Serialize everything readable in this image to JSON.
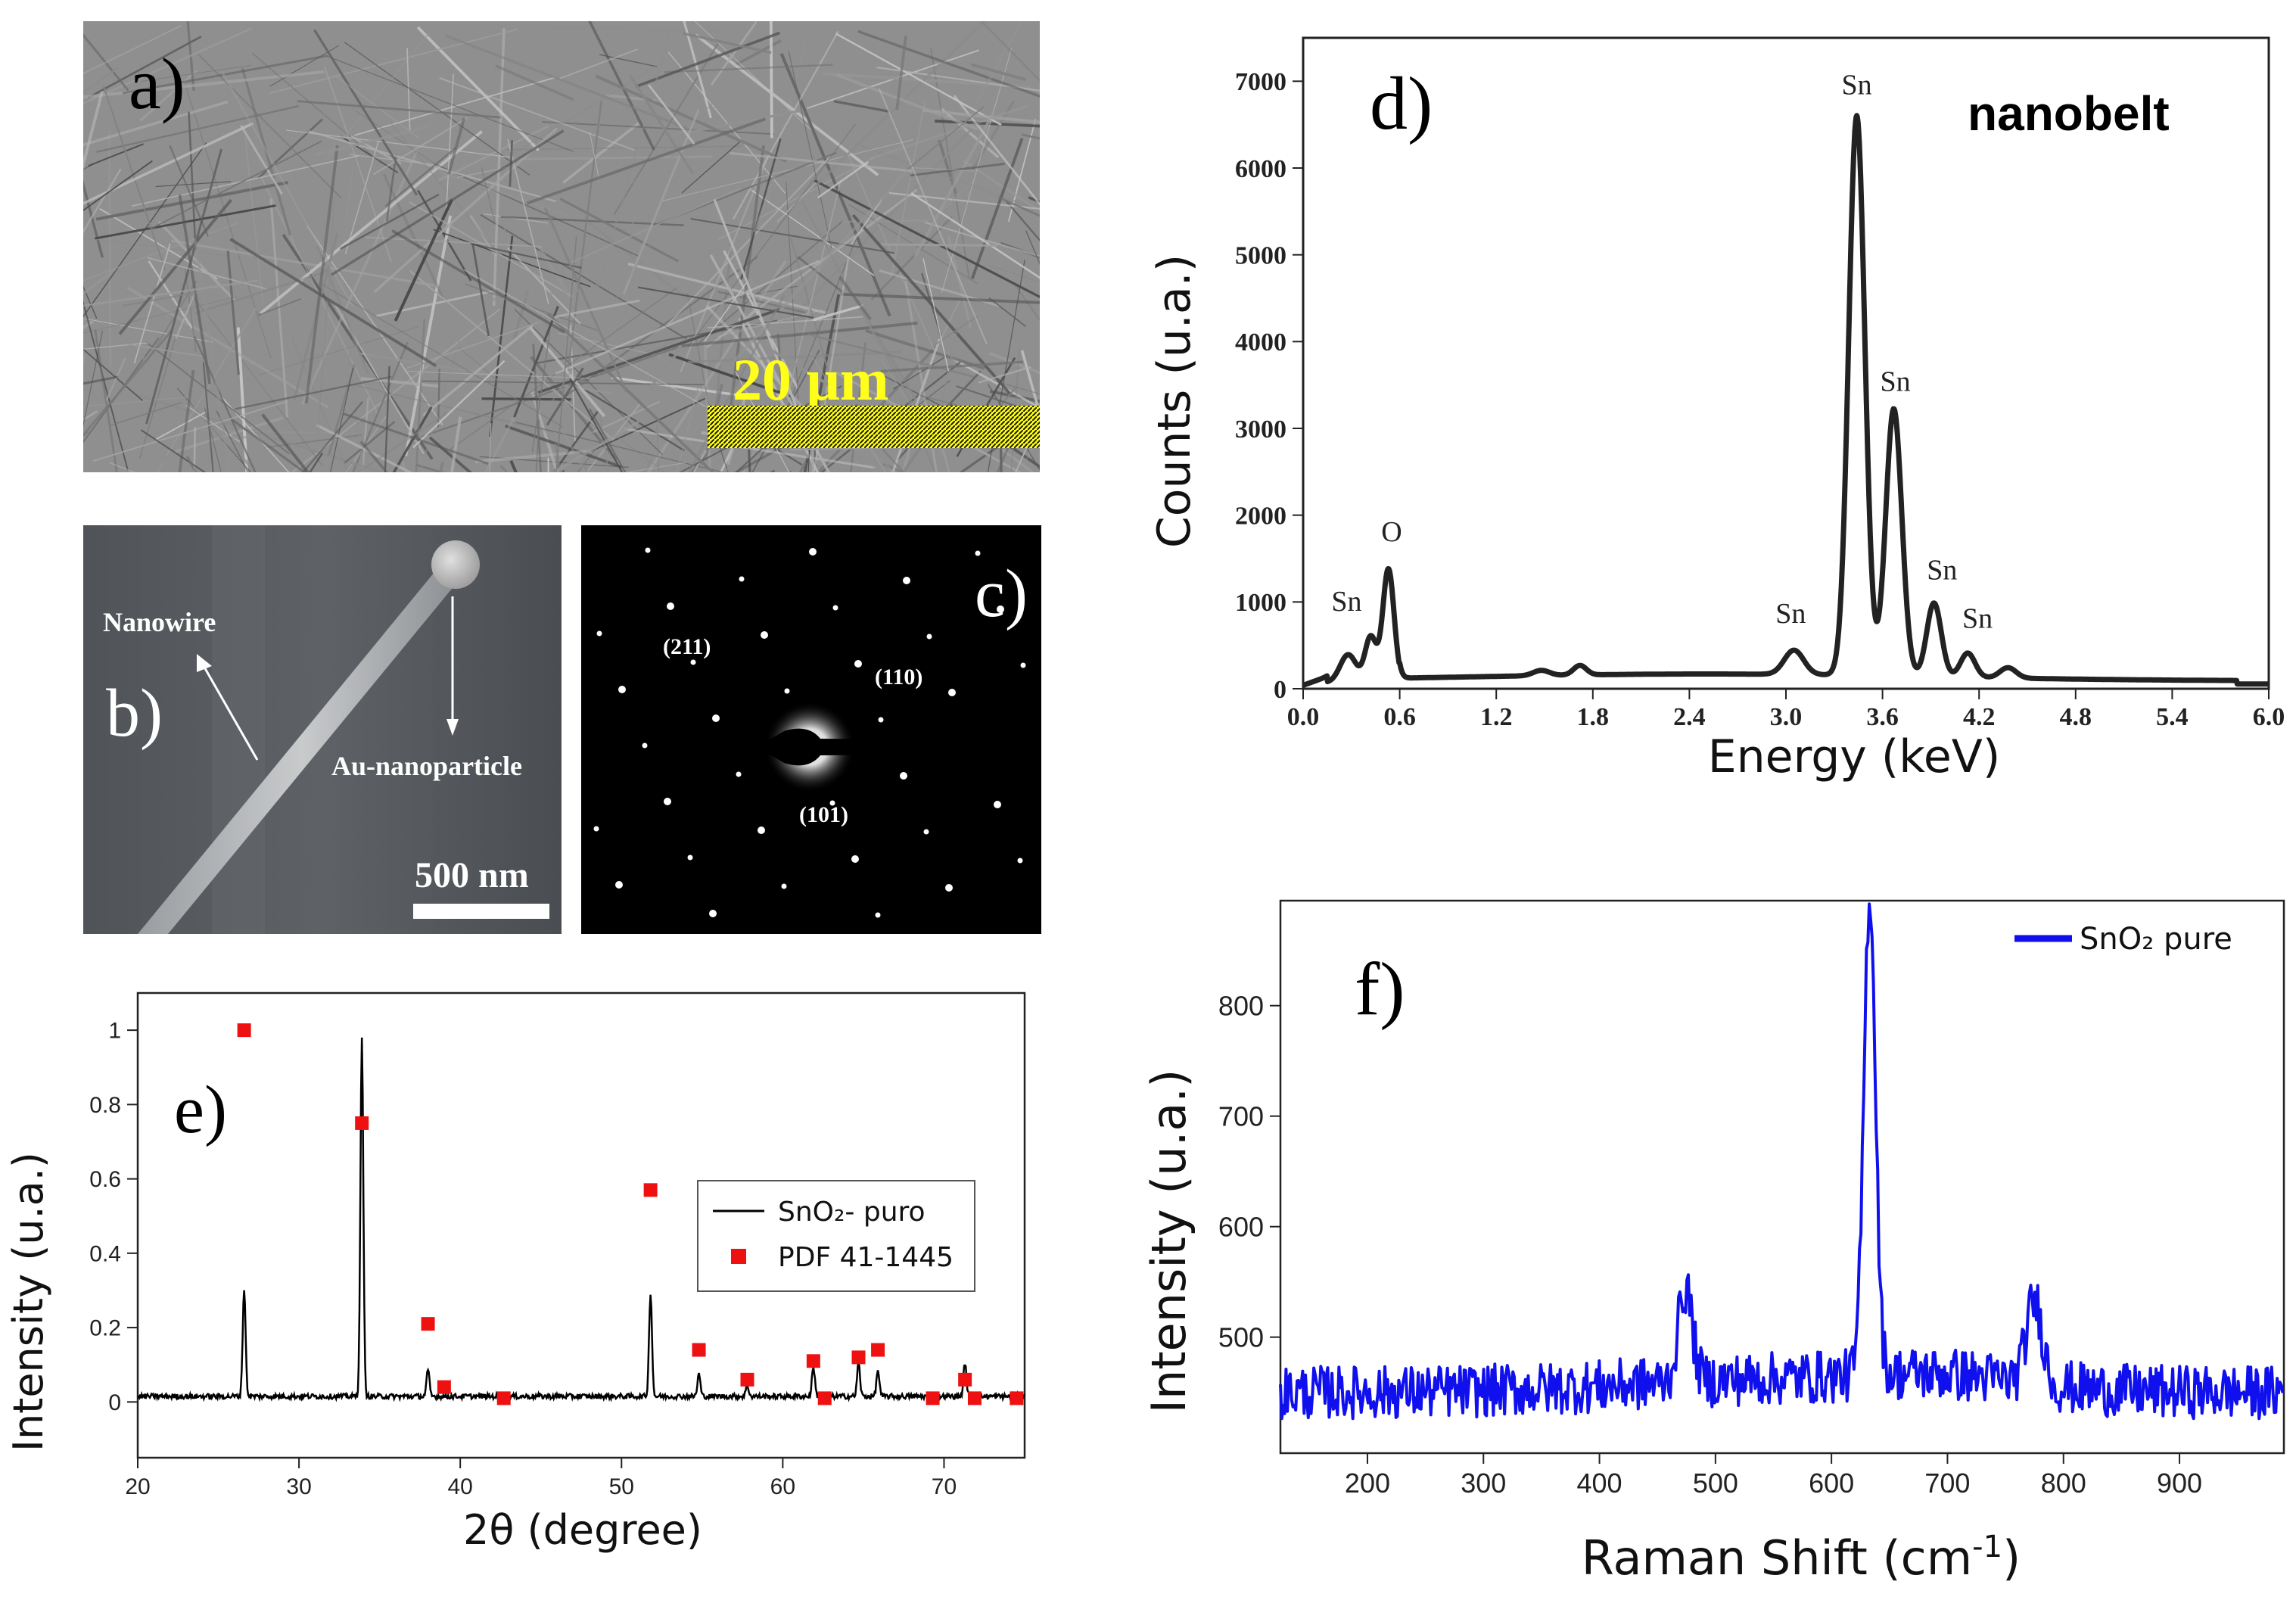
{
  "panels": {
    "a": {
      "label": "a)",
      "scale_text": "20 μm",
      "scale_color": "#ffff1a"
    },
    "b": {
      "label": "b)",
      "nanowire_label": "Nanowire",
      "particle_label": "Au-nanoparticle",
      "scale_text": "500 nm"
    },
    "c": {
      "label": "c)",
      "spots": [
        "(211)",
        "(110)",
        "(101)"
      ]
    },
    "d": {
      "label": "d)"
    },
    "e": {
      "label": "e)"
    },
    "f": {
      "label": "f)"
    }
  },
  "chart_data": [
    {
      "id": "d",
      "type": "line",
      "title": "nanobelt",
      "xlabel": "Energy (keV)",
      "ylabel": "Counts (u.a.)",
      "xlim": [
        0,
        6.0
      ],
      "ylim": [
        0,
        7500
      ],
      "xticks": [
        "0.0",
        "0.6",
        "1.2",
        "1.8",
        "2.4",
        "3.0",
        "3.6",
        "4.2",
        "4.8",
        "5.4",
        "6.0"
      ],
      "yticks": [
        "0",
        "1000",
        "2000",
        "3000",
        "4000",
        "5000",
        "6000",
        "7000"
      ],
      "color": "#222222",
      "peaks": [
        {
          "x": 0.28,
          "y": 320,
          "w": 0.05
        },
        {
          "x": 0.42,
          "y": 520,
          "w": 0.035
        },
        {
          "x": 0.53,
          "y": 1300,
          "w": 0.035
        },
        {
          "x": 1.48,
          "y": 60,
          "w": 0.05
        },
        {
          "x": 1.72,
          "y": 110,
          "w": 0.04
        },
        {
          "x": 3.05,
          "y": 280,
          "w": 0.06
        },
        {
          "x": 3.44,
          "y": 6450,
          "w": 0.05
        },
        {
          "x": 3.67,
          "y": 3080,
          "w": 0.05
        },
        {
          "x": 3.92,
          "y": 850,
          "w": 0.045
        },
        {
          "x": 4.13,
          "y": 280,
          "w": 0.045
        },
        {
          "x": 4.38,
          "y": 120,
          "w": 0.05
        }
      ],
      "annotations": [
        {
          "text": "Sn",
          "x": 0.27,
          "y": 900
        },
        {
          "text": "O",
          "x": 0.55,
          "y": 1700
        },
        {
          "text": "Sn",
          "x": 3.03,
          "y": 760
        },
        {
          "text": "Sn",
          "x": 3.44,
          "y": 6850
        },
        {
          "text": "Sn",
          "x": 3.68,
          "y": 3430
        },
        {
          "text": "Sn",
          "x": 3.97,
          "y": 1260
        },
        {
          "text": "Sn",
          "x": 4.19,
          "y": 700
        }
      ]
    },
    {
      "id": "e",
      "type": "line",
      "xlabel": "2θ (degree)",
      "ylabel": "Intensity (u.a.)",
      "xlim": [
        20,
        75
      ],
      "ylim": [
        -0.15,
        1.1
      ],
      "xticks": [
        "20",
        "30",
        "40",
        "50",
        "60",
        "70"
      ],
      "yticks": [
        "0",
        "0.2",
        "0.4",
        "0.6",
        "0.8",
        "1"
      ],
      "series": [
        {
          "name": "SnO₂- puro",
          "kind": "line",
          "color": "#000000",
          "peaks": [
            {
              "x": 26.6,
              "y": 0.29
            },
            {
              "x": 33.9,
              "y": 0.96
            },
            {
              "x": 38.0,
              "y": 0.07
            },
            {
              "x": 51.8,
              "y": 0.28
            },
            {
              "x": 54.8,
              "y": 0.06
            },
            {
              "x": 57.8,
              "y": 0.03
            },
            {
              "x": 61.9,
              "y": 0.08
            },
            {
              "x": 64.7,
              "y": 0.09
            },
            {
              "x": 65.9,
              "y": 0.07
            },
            {
              "x": 71.3,
              "y": 0.09
            }
          ]
        },
        {
          "name": "PDF 41-1445",
          "kind": "scatter",
          "color": "#ee1111",
          "x": [
            26.6,
            33.9,
            38.0,
            39.0,
            42.7,
            51.8,
            54.8,
            57.8,
            61.9,
            62.6,
            64.7,
            65.9,
            69.3,
            71.3,
            71.9,
            74.5
          ],
          "y": [
            1.0,
            0.75,
            0.21,
            0.04,
            0.01,
            0.57,
            0.14,
            0.06,
            0.11,
            0.01,
            0.12,
            0.14,
            0.01,
            0.06,
            0.01,
            0.01
          ]
        }
      ]
    },
    {
      "id": "f",
      "type": "line",
      "xlabel": "Raman Shift (cm-1)",
      "ylabel": "Intensity (u.a.)",
      "xlim": [
        125,
        990
      ],
      "ylim": [
        395,
        895
      ],
      "xticks": [
        "200",
        "300",
        "400",
        "500",
        "600",
        "700",
        "800",
        "900"
      ],
      "yticks": [
        "500",
        "600",
        "700",
        "800"
      ],
      "series": [
        {
          "name": "SnO₂ pure",
          "color": "#1010ee",
          "peaks": [
            {
              "x": 474,
              "y": 85,
              "w": 6
            },
            {
              "x": 633,
              "y": 435,
              "w": 5
            },
            {
              "x": 775,
              "y": 75,
              "w": 7
            }
          ]
        }
      ]
    }
  ]
}
